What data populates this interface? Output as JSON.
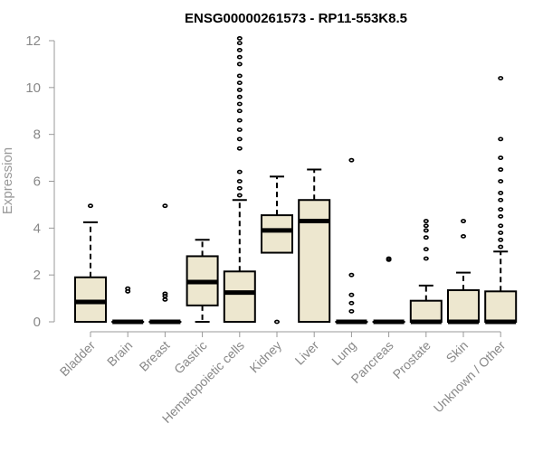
{
  "chart_data": {
    "type": "boxplot",
    "title": "ENSG00000261573 - RP11-553K8.5",
    "xlabel": "",
    "ylabel": "Expression",
    "ylim": [
      0,
      12
    ],
    "yticks": [
      0,
      2,
      4,
      6,
      8,
      10,
      12
    ],
    "box_fill": "#EDE7CF",
    "categories": [
      "Bladder",
      "Brain",
      "Breast",
      "Gastric",
      "Hematopoietic cells",
      "Kidney",
      "Liver",
      "Lung",
      "Pancreas",
      "Prostate",
      "Skin",
      "Unknown / Other"
    ],
    "boxes": [
      {
        "name": "Bladder",
        "min": 0,
        "q1": 0,
        "median": 0.85,
        "q3": 1.9,
        "max": 4.25,
        "outliers": [
          4.95
        ]
      },
      {
        "name": "Brain",
        "min": 0,
        "q1": 0,
        "median": 0,
        "q3": 0,
        "max": 0,
        "outliers": [
          1.3,
          1.42
        ]
      },
      {
        "name": "Breast",
        "min": 0,
        "q1": 0,
        "median": 0,
        "q3": 0,
        "max": 0,
        "outliers": [
          0.95,
          1.1,
          1.2,
          4.95
        ]
      },
      {
        "name": "Gastric",
        "min": 0,
        "q1": 0.7,
        "median": 1.7,
        "q3": 2.8,
        "max": 3.5,
        "outliers": []
      },
      {
        "name": "Hematopoietic cells",
        "min": 0,
        "q1": 0,
        "median": 1.25,
        "q3": 2.15,
        "max": 5.2,
        "outliers": [
          5.4,
          5.7,
          6.0,
          6.4,
          7.4,
          7.8,
          8.2,
          8.6,
          9.0,
          9.3,
          9.6,
          9.9,
          10.2,
          10.5,
          11.0,
          11.3,
          11.6,
          11.9,
          12.1
        ]
      },
      {
        "name": "Kidney",
        "min": 2.95,
        "q1": 2.95,
        "median": 3.9,
        "q3": 4.55,
        "max": 6.2,
        "outliers": [
          0
        ]
      },
      {
        "name": "Liver",
        "min": 0,
        "q1": 0,
        "median": 4.3,
        "q3": 5.2,
        "max": 6.5,
        "outliers": []
      },
      {
        "name": "Lung",
        "min": 0,
        "q1": 0,
        "median": 0,
        "q3": 0,
        "max": 0,
        "outliers": [
          0.45,
          0.8,
          1.15,
          2.0,
          6.9
        ]
      },
      {
        "name": "Pancreas",
        "min": 0,
        "q1": 0,
        "median": 0,
        "q3": 0,
        "max": 0,
        "outliers": [
          2.65,
          2.7
        ]
      },
      {
        "name": "Prostate",
        "min": 0,
        "q1": 0,
        "median": 0,
        "q3": 0.9,
        "max": 1.55,
        "outliers": [
          2.7,
          3.1,
          3.6,
          3.9,
          4.1,
          4.3
        ]
      },
      {
        "name": "Skin",
        "min": 0,
        "q1": 0,
        "median": 0,
        "q3": 1.35,
        "max": 2.1,
        "outliers": [
          3.65,
          4.3
        ]
      },
      {
        "name": "Unknown / Other",
        "min": 0,
        "q1": 0,
        "median": 0,
        "q3": 1.3,
        "max": 3.0,
        "outliers": [
          3.2,
          3.5,
          3.8,
          4.1,
          4.5,
          4.8,
          5.2,
          5.5,
          6.0,
          6.5,
          7.0,
          7.8,
          10.4
        ]
      }
    ]
  }
}
